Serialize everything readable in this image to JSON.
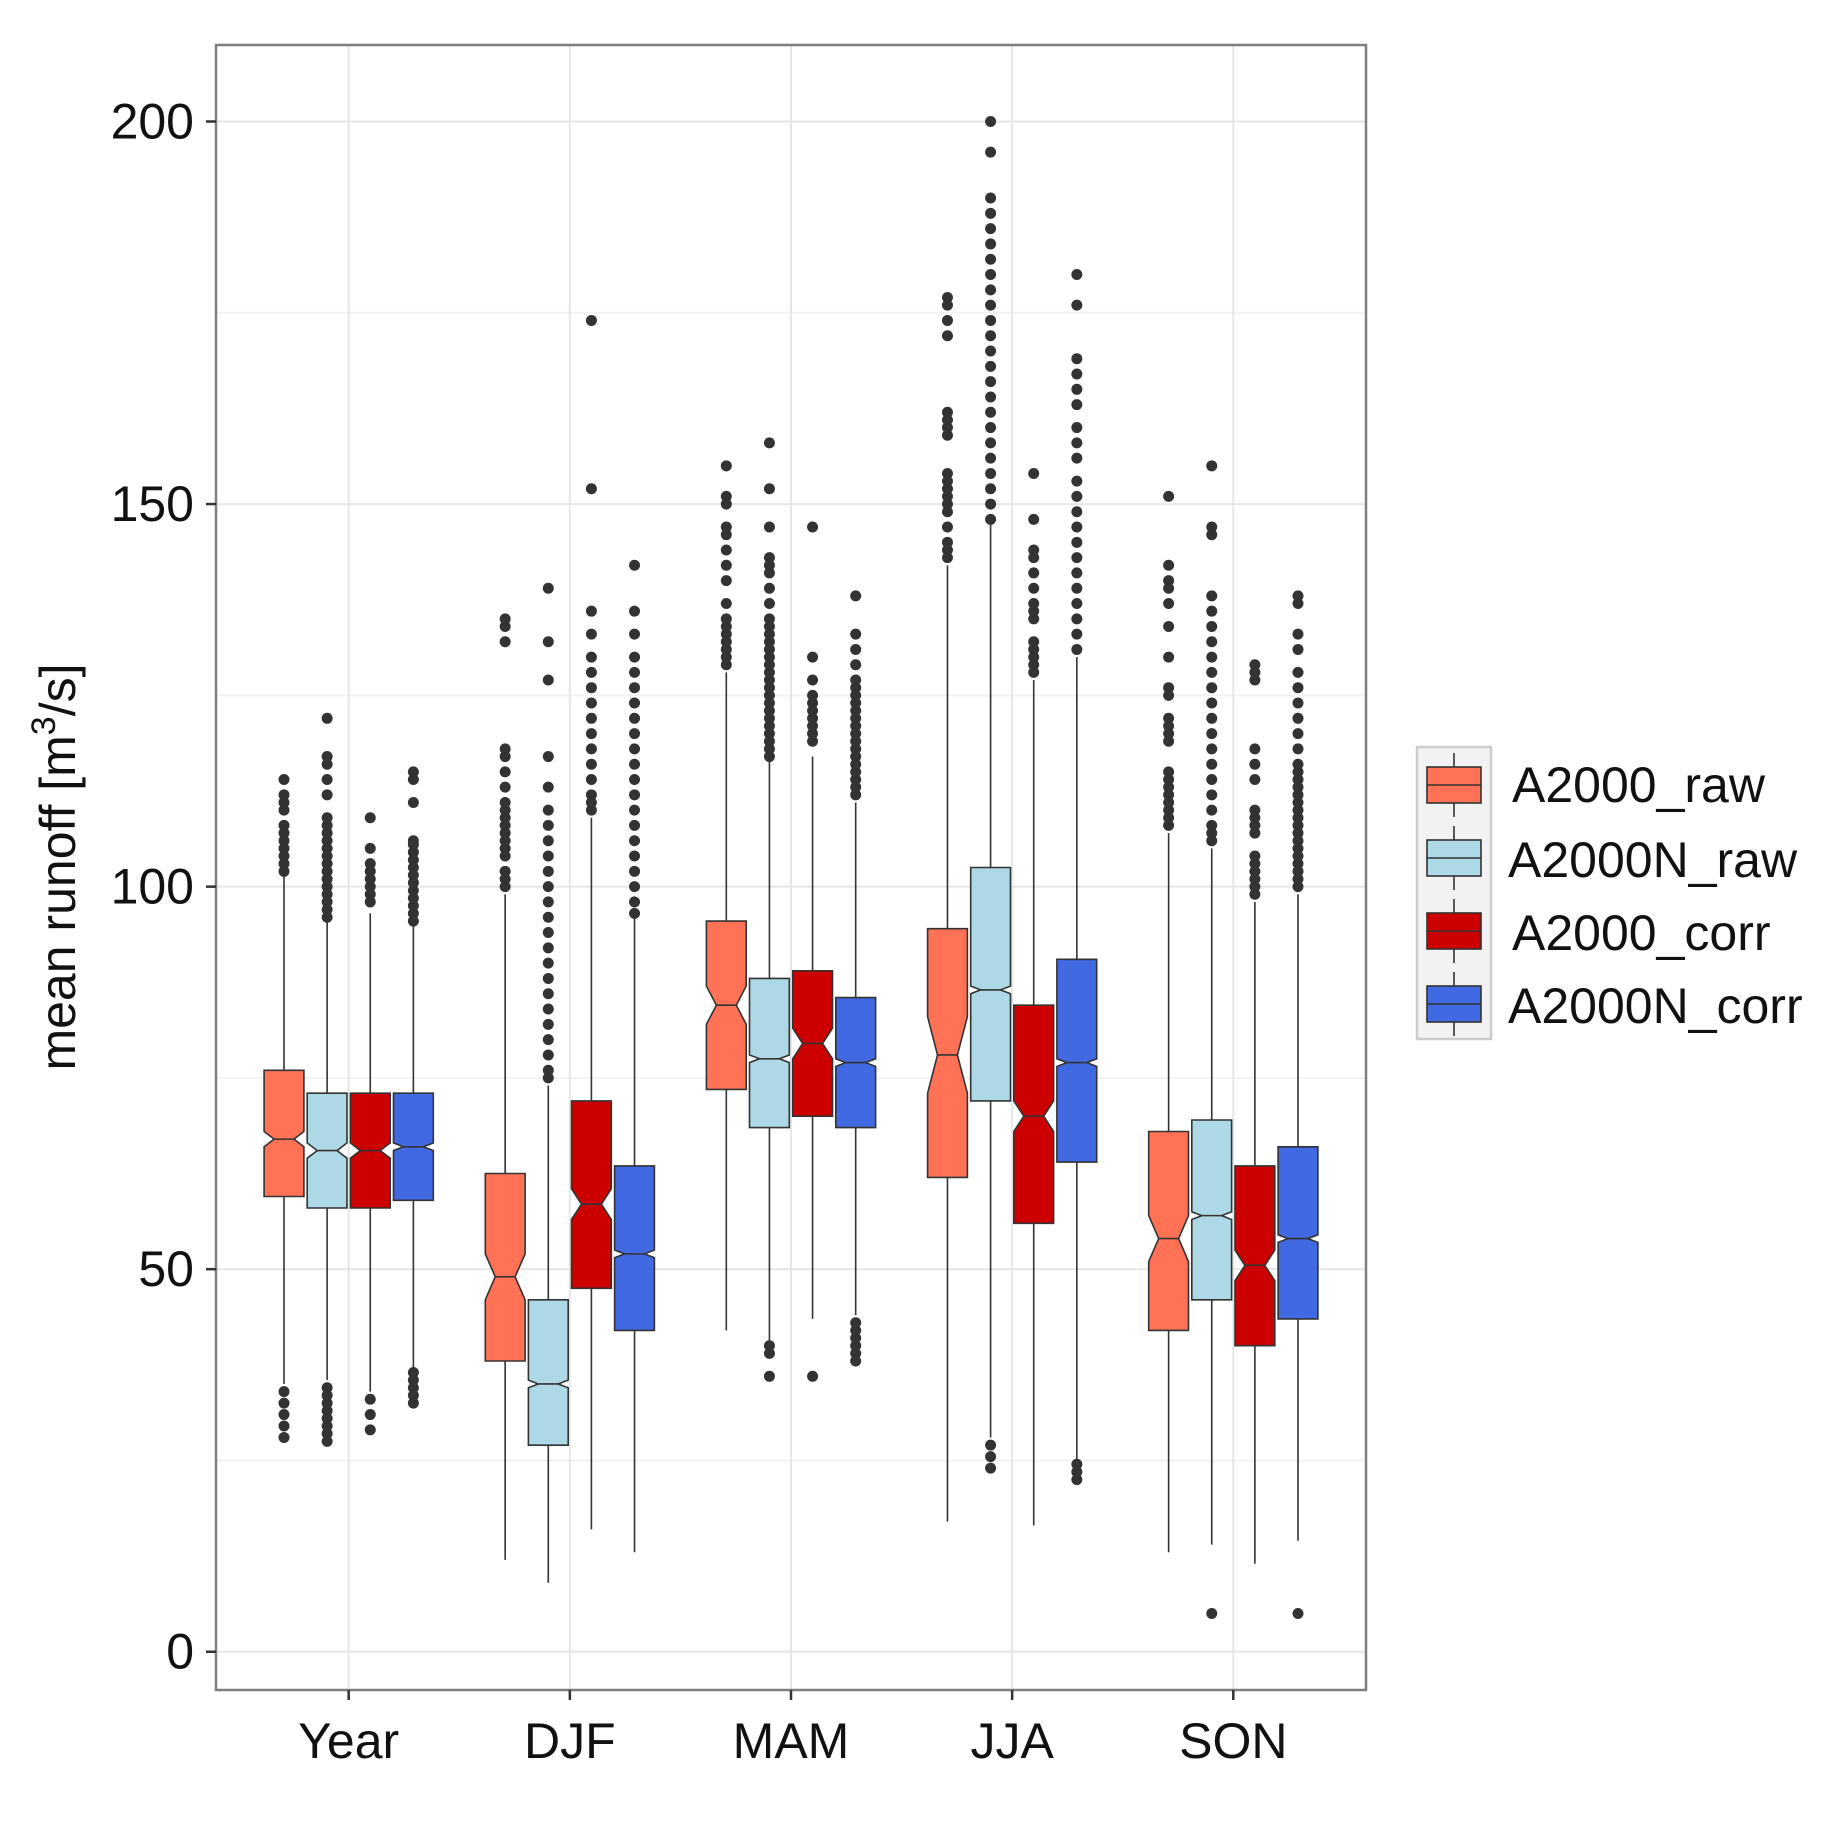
{
  "chart_data": {
    "type": "boxplot",
    "title": "",
    "xlabel": "",
    "ylabel": "mean runoff",
    "ylabel_unit": {
      "open": " [m",
      "sup": "3",
      "close": "/s]"
    },
    "ylim": [
      -5,
      210
    ],
    "yticks": [
      0,
      50,
      100,
      150,
      200
    ],
    "grid": true,
    "legend_position": "right",
    "categories": [
      "Year",
      "DJF",
      "MAM",
      "JJA",
      "SON"
    ],
    "series": [
      {
        "name": "A2000_raw",
        "color": "#FF7256",
        "boxes": [
          {
            "q1": 59.5,
            "median": 67,
            "q3": 76,
            "notch_lo": 66,
            "notch_hi": 68,
            "whisker_lo": 35,
            "whisker_hi": 101.5,
            "outliers": [
              28,
              29.5,
              31,
              32.5,
              34,
              102,
              103,
              104,
              105,
              106,
              107,
              108,
              110,
              111,
              112,
              114
            ]
          },
          {
            "q1": 38,
            "median": 49,
            "q3": 62.5,
            "notch_lo": 46,
            "notch_hi": 52,
            "whisker_lo": 12,
            "whisker_hi": 99,
            "outliers": [
              100,
              101,
              102,
              104,
              105,
              106,
              107,
              108,
              109,
              110,
              111,
              113,
              115,
              117,
              118,
              132,
              134,
              135
            ]
          },
          {
            "q1": 73.5,
            "median": 84.5,
            "q3": 95.5,
            "notch_lo": 82,
            "notch_hi": 87,
            "whisker_lo": 42,
            "whisker_hi": 128,
            "outliers": [
              129,
              130,
              131,
              132,
              133,
              134,
              135,
              137,
              140,
              142,
              144,
              146,
              147,
              150,
              151,
              155
            ]
          },
          {
            "q1": 62,
            "median": 78,
            "q3": 94.5,
            "notch_lo": 73,
            "notch_hi": 83,
            "whisker_lo": 17,
            "whisker_hi": 142,
            "outliers": [
              143,
              144,
              145,
              147,
              149,
              150,
              151,
              152,
              153,
              154,
              159,
              160,
              161,
              162,
              172,
              174,
              176,
              177
            ]
          },
          {
            "q1": 42,
            "median": 54,
            "q3": 68,
            "notch_lo": 51,
            "notch_hi": 57,
            "whisker_lo": 13,
            "whisker_hi": 107,
            "outliers": [
              108,
              109,
              110,
              111,
              112,
              113,
              114,
              115,
              119,
              120,
              121,
              122,
              125,
              126,
              130,
              134,
              137,
              139,
              140,
              142,
              151
            ]
          }
        ]
      },
      {
        "name": "A2000N_raw",
        "color": "#ADD8E6",
        "boxes": [
          {
            "q1": 58,
            "median": 65.5,
            "q3": 73,
            "notch_lo": 64.5,
            "notch_hi": 66.5,
            "whisker_lo": 35.5,
            "whisker_hi": 96,
            "outliers": [
              27.5,
              28.5,
              29.5,
              30.5,
              31.5,
              32.5,
              33.5,
              34.5,
              96,
              97,
              98,
              99,
              100,
              101,
              102,
              103,
              104,
              105,
              106,
              107,
              108,
              109,
              112,
              114,
              116,
              117,
              122
            ]
          },
          {
            "q1": 27,
            "median": 35,
            "q3": 46,
            "notch_lo": 34.5,
            "notch_hi": 35.5,
            "whisker_lo": 9,
            "whisker_hi": 74,
            "outliers": [
              75,
              76,
              78,
              80,
              82,
              84,
              86,
              88,
              90,
              92,
              94,
              96,
              98,
              100,
              102,
              104,
              106,
              108,
              110,
              113,
              117,
              127,
              132,
              139
            ]
          },
          {
            "q1": 68.5,
            "median": 77.5,
            "q3": 88,
            "notch_lo": 77,
            "notch_hi": 78,
            "whisker_lo": 40,
            "whisker_hi": 117,
            "outliers": [
              36,
              39,
              40,
              117,
              118,
              119,
              120,
              121,
              122,
              123,
              124,
              125,
              126,
              127,
              128,
              129,
              130,
              131,
              132,
              133,
              134,
              135,
              137,
              139,
              141,
              142,
              143,
              147,
              152,
              158
            ]
          },
          {
            "q1": 72,
            "median": 86.5,
            "q3": 102.5,
            "notch_lo": 86,
            "notch_hi": 87,
            "whisker_lo": 28,
            "whisker_hi": 148,
            "outliers": [
              24,
              25.5,
              27,
              148,
              150,
              152,
              154,
              156,
              158,
              160,
              162,
              164,
              166,
              168,
              170,
              172,
              174,
              176,
              178,
              180,
              182,
              184,
              186,
              188,
              190,
              196,
              200
            ]
          },
          {
            "q1": 46,
            "median": 57,
            "q3": 69.5,
            "notch_lo": 56.5,
            "notch_hi": 57.5,
            "whisker_lo": 14,
            "whisker_hi": 105,
            "outliers": [
              5,
              106,
              107,
              108,
              110,
              112,
              114,
              116,
              118,
              120,
              122,
              124,
              126,
              128,
              130,
              132,
              134,
              136,
              138,
              146,
              147,
              155
            ]
          }
        ]
      },
      {
        "name": "A2000_corr",
        "color": "#CD0000",
        "boxes": [
          {
            "q1": 58,
            "median": 65.5,
            "q3": 73,
            "notch_lo": 64.5,
            "notch_hi": 66.5,
            "whisker_lo": 34,
            "whisker_hi": 96.5,
            "outliers": [
              29,
              31,
              33,
              98,
              99,
              100,
              101,
              102,
              103,
              105,
              109
            ]
          },
          {
            "q1": 47.5,
            "median": 58.5,
            "q3": 72,
            "notch_lo": 56.5,
            "notch_hi": 60.5,
            "whisker_lo": 16,
            "whisker_hi": 109,
            "outliers": [
              110,
              111,
              112,
              114,
              116,
              118,
              120,
              122,
              124,
              126,
              128,
              130,
              133,
              136,
              152,
              174
            ]
          },
          {
            "q1": 70,
            "median": 79.5,
            "q3": 89,
            "notch_lo": 77.5,
            "notch_hi": 81.5,
            "whisker_lo": 43.5,
            "whisker_hi": 117,
            "outliers": [
              36,
              119,
              120,
              121,
              122,
              123,
              124,
              125,
              127,
              130,
              147
            ]
          },
          {
            "q1": 56,
            "median": 70,
            "q3": 84.5,
            "notch_lo": 68,
            "notch_hi": 72,
            "whisker_lo": 16.5,
            "whisker_hi": 127,
            "outliers": [
              128,
              129,
              130,
              131,
              132,
              135,
              136,
              137,
              139,
              141,
              143,
              144,
              148,
              154
            ]
          },
          {
            "q1": 40,
            "median": 50.5,
            "q3": 63.5,
            "notch_lo": 48.5,
            "notch_hi": 52.5,
            "whisker_lo": 11.5,
            "whisker_hi": 98,
            "outliers": [
              99,
              100,
              101,
              102,
              103,
              104,
              107,
              108,
              109,
              110,
              114,
              116,
              118,
              127,
              128,
              129
            ]
          }
        ]
      },
      {
        "name": "A2000N_corr",
        "color": "#4169E1",
        "boxes": [
          {
            "q1": 59,
            "median": 66,
            "q3": 73,
            "notch_lo": 65.5,
            "notch_hi": 66.5,
            "whisker_lo": 37,
            "whisker_hi": 95,
            "outliers": [
              32.5,
              33.5,
              34.5,
              35.5,
              36.5,
              95.5,
              96.5,
              97.5,
              98.5,
              99.5,
              100.5,
              101.5,
              102.5,
              103.5,
              104.5,
              105.5,
              106,
              111,
              114,
              115
            ]
          },
          {
            "q1": 42,
            "median": 52,
            "q3": 63.5,
            "notch_lo": 51.5,
            "notch_hi": 52.5,
            "whisker_lo": 13,
            "whisker_hi": 96,
            "outliers": [
              96.5,
              98,
              100,
              102,
              104,
              106,
              108,
              110,
              112,
              114,
              116,
              118,
              120,
              122,
              124,
              126,
              128,
              130,
              133,
              136,
              142
            ]
          },
          {
            "q1": 68.5,
            "median": 77,
            "q3": 85.5,
            "notch_lo": 76.5,
            "notch_hi": 77.5,
            "whisker_lo": 44,
            "whisker_hi": 111,
            "outliers": [
              38,
              39,
              40,
              41,
              42,
              43,
              112,
              113,
              114,
              115,
              116,
              117,
              118,
              119,
              120,
              121,
              122,
              123,
              124,
              125,
              126,
              127,
              129,
              131,
              133,
              138
            ]
          },
          {
            "q1": 64,
            "median": 77,
            "q3": 90.5,
            "notch_lo": 76.5,
            "notch_hi": 77.5,
            "whisker_lo": 25,
            "whisker_hi": 130,
            "outliers": [
              22.5,
              23.5,
              24.5,
              131,
              133,
              135,
              137,
              139,
              141,
              143,
              145,
              147,
              149,
              151,
              153,
              156,
              158,
              160,
              163,
              165,
              167,
              169,
              176,
              180
            ]
          },
          {
            "q1": 43.5,
            "median": 54,
            "q3": 66,
            "notch_lo": 53.5,
            "notch_hi": 54.5,
            "whisker_lo": 14.5,
            "whisker_hi": 99,
            "outliers": [
              5,
              100,
              101,
              102,
              103,
              104,
              105,
              106,
              107,
              108,
              109,
              110,
              111,
              112,
              113,
              114,
              115,
              116,
              118,
              120,
              122,
              124,
              126,
              128,
              131,
              133,
              137,
              138
            ]
          }
        ]
      }
    ]
  }
}
